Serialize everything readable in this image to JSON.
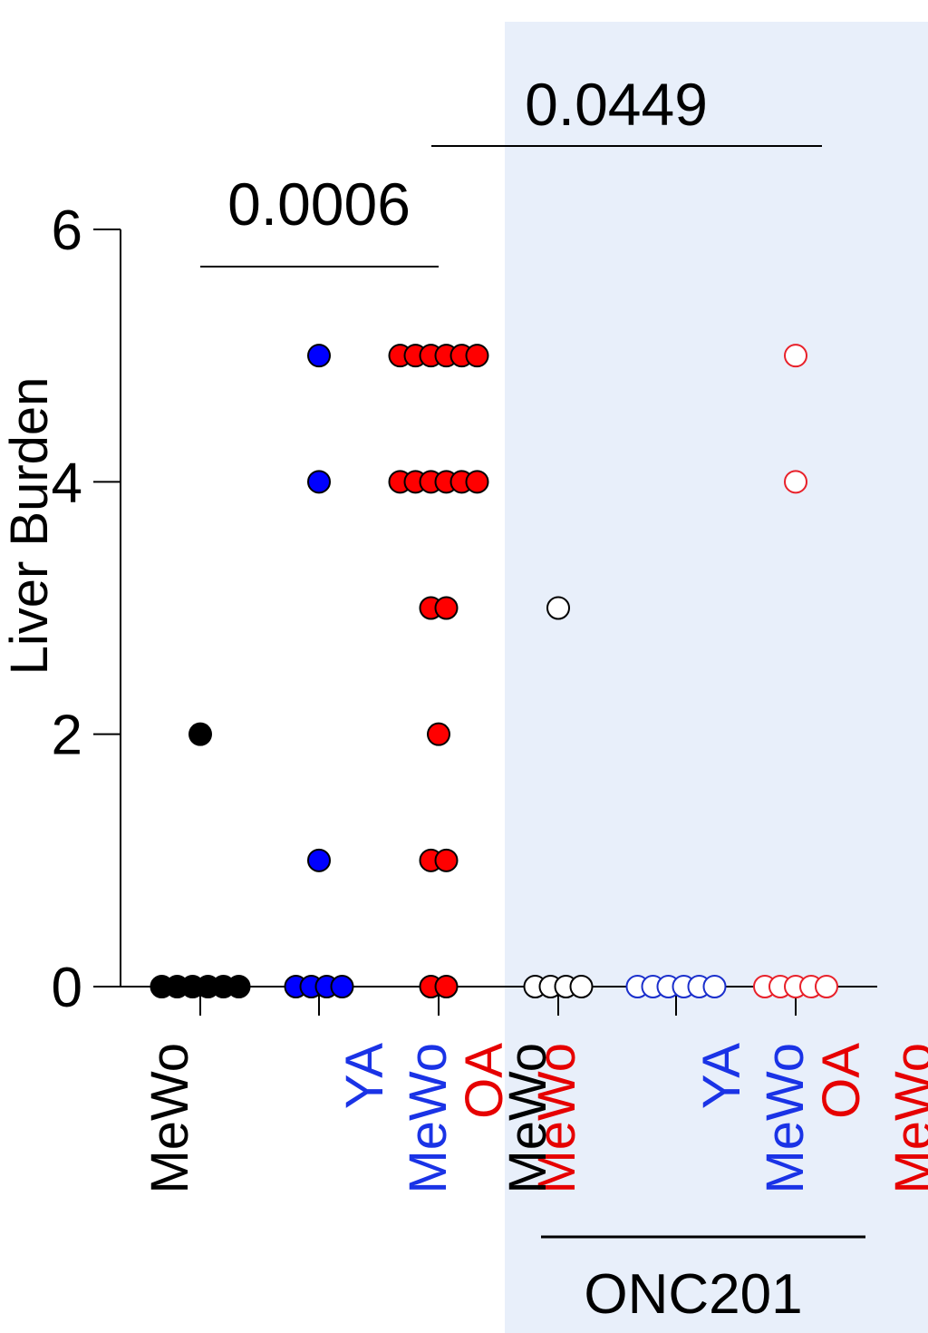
{
  "colors": {
    "panel_bg": "#e8effa",
    "black": "#000000",
    "blue": "#0000ff",
    "blue_label": "#1a33e6",
    "red": "#ff0000",
    "red_label": "#e60000",
    "red_open": "#e8212a",
    "blue_open": "#1a2fcc"
  },
  "chart_data": {
    "type": "scatter",
    "ylabel": "Liver Burden",
    "ylim": [
      0,
      6
    ],
    "yticks": [
      {
        "value": 0,
        "label": "0"
      },
      {
        "value": 2,
        "label": "2"
      },
      {
        "value": 4,
        "label": "4"
      },
      {
        "value": 6,
        "label": "6"
      }
    ],
    "groups": [
      {
        "prefix": "",
        "cell": "MeWo",
        "color": "#000000",
        "filled": true,
        "values": [
          2,
          0,
          0,
          0,
          0,
          0,
          0
        ]
      },
      {
        "prefix": "YA",
        "cell": "MeWo",
        "color": "#0000ff",
        "filled": true,
        "values": [
          5,
          4,
          1,
          0,
          0,
          0,
          0
        ]
      },
      {
        "prefix": "OA",
        "cell": "MeWo",
        "color": "#ff0000",
        "filled": true,
        "values": [
          5,
          5,
          5,
          5,
          5,
          5,
          4,
          4,
          4,
          4,
          4,
          4,
          3,
          3,
          2,
          1,
          1,
          0,
          0
        ]
      },
      {
        "prefix": "",
        "cell": "MeWo",
        "color": "#000000",
        "filled": false,
        "values": [
          3,
          0,
          0,
          0,
          0
        ]
      },
      {
        "prefix": "YA",
        "cell": "MeWo",
        "color": "#1a2fcc",
        "filled": false,
        "values": [
          0,
          0,
          0,
          0,
          0,
          0
        ]
      },
      {
        "prefix": "OA",
        "cell": "MeWo",
        "color": "#e8212a",
        "filled": false,
        "values": [
          5,
          4,
          0,
          0,
          0,
          0,
          0
        ]
      }
    ],
    "comparisons": [
      {
        "from": 0,
        "to": 2,
        "label": "0.0006"
      },
      {
        "from": 2,
        "to": 5,
        "label": "0.0449"
      }
    ],
    "treatment": {
      "label": "ONC201",
      "groups": [
        3,
        4,
        5
      ]
    },
    "grid": false,
    "legend": "none"
  }
}
